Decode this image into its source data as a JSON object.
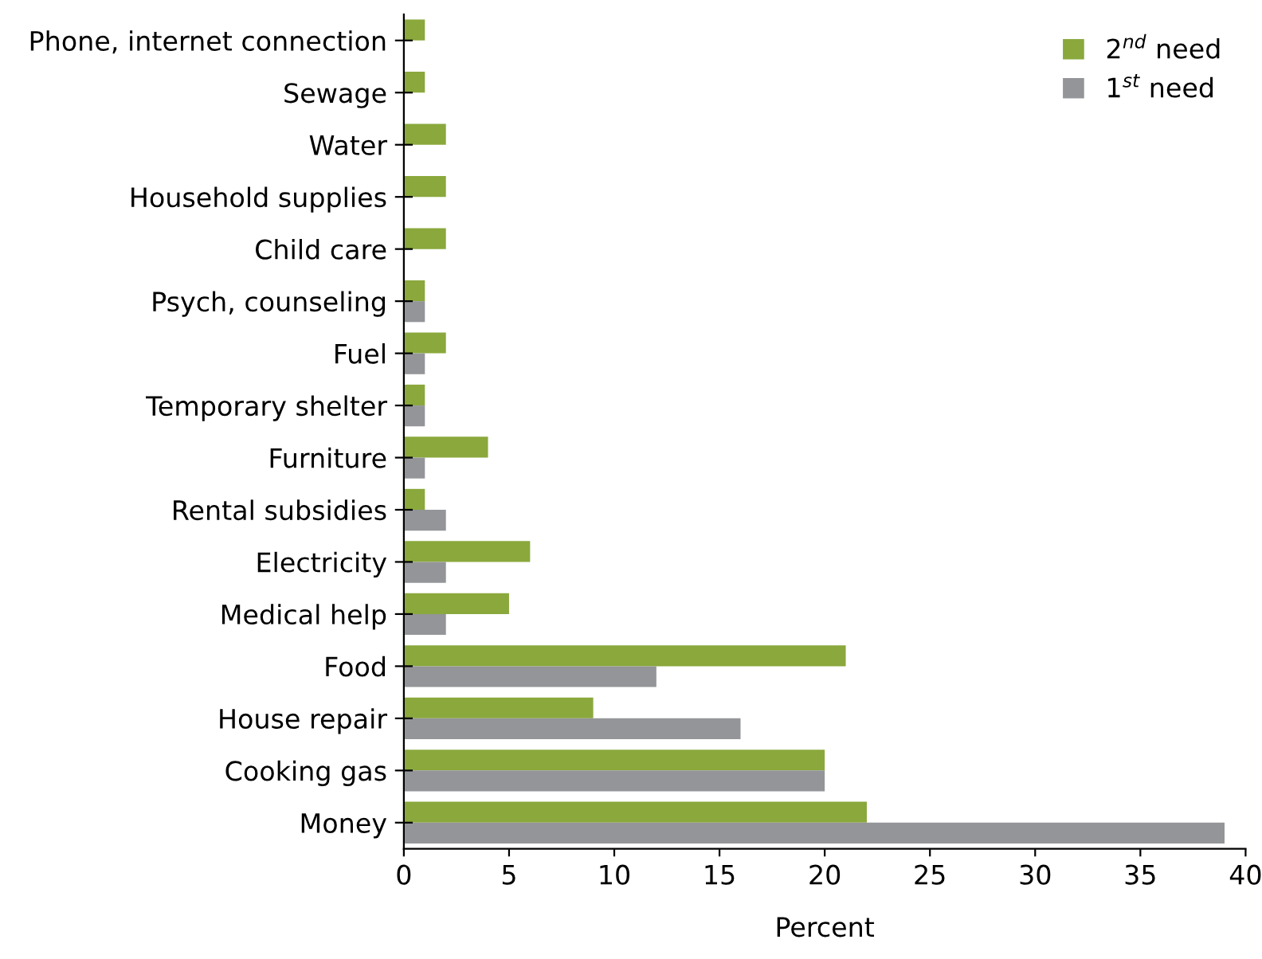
{
  "chart_data": {
    "type": "bar",
    "orientation": "horizontal",
    "xlabel": "Percent",
    "categories": [
      "Phone, internet connection",
      "Sewage",
      "Water",
      "Household supplies",
      "Child care",
      "Psych, counseling",
      "Fuel",
      "Temporary shelter",
      "Furniture",
      "Rental subsidies",
      "Electricity",
      "Medical help",
      "Food",
      "House repair",
      "Cooking gas",
      "Money"
    ],
    "series": [
      {
        "name": "2$^{nd}$ need",
        "color": "#8aa83c",
        "values": [
          1,
          1,
          2,
          2,
          2,
          1,
          2,
          1,
          4,
          1,
          6,
          5,
          21,
          9,
          20,
          22
        ]
      },
      {
        "name": "1$^{st}$ need",
        "color": "#939598",
        "values": [
          0,
          0,
          0,
          0,
          0,
          1,
          1,
          1,
          1,
          2,
          2,
          2,
          12,
          16,
          20,
          39
        ]
      }
    ],
    "xlim": [
      0,
      40
    ],
    "xticks": [
      0,
      5,
      10,
      15,
      20,
      25,
      30,
      35,
      40
    ],
    "grid": false,
    "legend": "top right"
  }
}
